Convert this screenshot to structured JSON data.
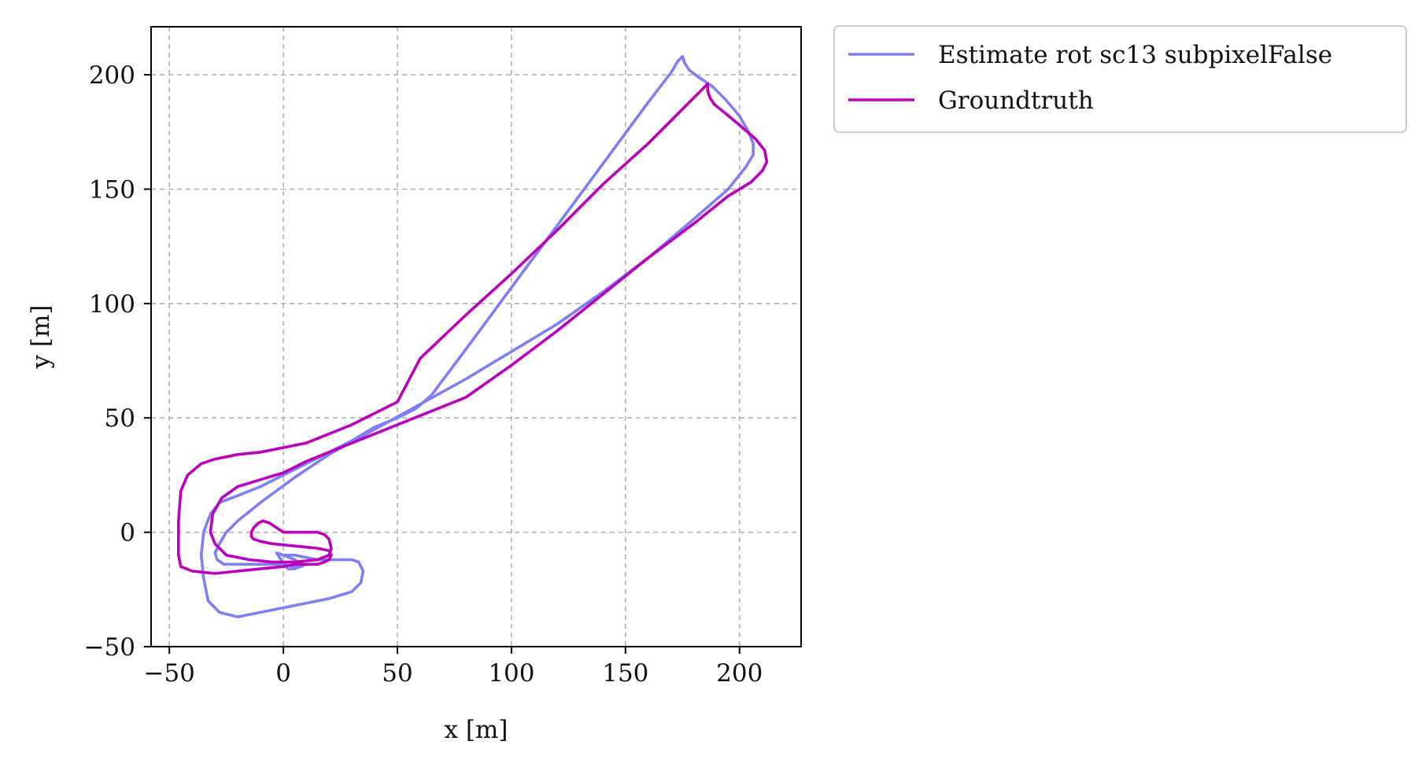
{
  "chart_data": {
    "type": "line",
    "title": "",
    "xlabel": "x [m]",
    "ylabel": "y [m]",
    "xlim": [
      -58,
      227
    ],
    "ylim": [
      -50,
      221
    ],
    "xticks": [
      -50,
      0,
      50,
      100,
      150,
      200
    ],
    "yticks": [
      -50,
      0,
      50,
      100,
      150,
      200
    ],
    "xtick_labels": [
      "−50",
      "0",
      "50",
      "100",
      "150",
      "200"
    ],
    "ytick_labels": [
      "−50",
      "0",
      "50",
      "100",
      "150",
      "200"
    ],
    "grid": true,
    "legend_position": "outside-top-right",
    "series": [
      {
        "name": "Estimate rot sc13 subpixelFalse",
        "color": "#7f7ff5",
        "x": [
          0,
          5,
          10,
          15,
          20,
          25,
          30,
          33,
          35,
          34,
          30,
          20,
          5,
          -10,
          -20,
          -28,
          -33,
          -35,
          -36,
          -35,
          -32,
          -28,
          -20,
          -10,
          0,
          10,
          20,
          30,
          40,
          50,
          58,
          65,
          80,
          100,
          120,
          140,
          160,
          170,
          173,
          175,
          176,
          178,
          182,
          188,
          194,
          200,
          204,
          206,
          206,
          203,
          195,
          180,
          160,
          140,
          120,
          100,
          80,
          60,
          40,
          20,
          5,
          -10,
          -20,
          -25,
          -28,
          -30,
          -29,
          -26,
          -20,
          -10,
          0,
          5,
          8,
          8,
          5,
          0,
          -3,
          -1,
          2,
          5,
          10
        ],
        "y": [
          -10,
          -10,
          -11,
          -12,
          -12,
          -12,
          -12,
          -13,
          -17,
          -22,
          -26,
          -29,
          -32,
          -35,
          -37,
          -35,
          -30,
          -20,
          -10,
          0,
          8,
          13,
          16,
          20,
          25,
          30,
          35,
          40,
          46,
          50,
          54,
          60,
          80,
          107,
          134,
          161,
          188,
          201,
          206,
          208,
          205,
          202,
          199,
          195,
          189,
          182,
          175,
          170,
          165,
          160,
          150,
          137,
          120,
          105,
          91,
          79,
          67,
          56,
          45,
          34,
          24,
          13,
          5,
          0,
          -5,
          -9,
          -12,
          -14,
          -14,
          -14,
          -14,
          -15,
          -15,
          -14,
          -12,
          -10,
          -9,
          -12,
          -16,
          -16,
          -14
        ]
      },
      {
        "name": "Groundtruth",
        "color": "#bb00bb",
        "x": [
          0,
          5,
          10,
          15,
          18,
          20,
          21,
          20,
          15,
          5,
          -5,
          -15,
          -25,
          -30,
          -32,
          -31,
          -27,
          -20,
          -10,
          0,
          10,
          20,
          30,
          40,
          50,
          60,
          80,
          100,
          120,
          140,
          160,
          180,
          195,
          205,
          210,
          212,
          211,
          207,
          200,
          194,
          189,
          187,
          186,
          186,
          184,
          175,
          160,
          140,
          120,
          100,
          80,
          60,
          50,
          40,
          30,
          20,
          10,
          0,
          -10,
          -20,
          -25,
          -30,
          -36,
          -42,
          -45,
          -46,
          -46,
          -45,
          -40,
          -30,
          -20,
          -10,
          0,
          5,
          10,
          15,
          18,
          20,
          21,
          20,
          15,
          5,
          -5,
          -10,
          -13,
          -14,
          -14,
          -13,
          -11,
          -9,
          -6,
          -3,
          0
        ],
        "y": [
          0,
          0,
          0,
          0,
          -1,
          -3,
          -7,
          -10,
          -12,
          -13,
          -13,
          -12,
          -10,
          -5,
          0,
          8,
          15,
          20,
          23,
          26,
          31,
          35,
          39,
          43,
          47,
          51,
          59,
          73,
          88,
          104,
          120,
          135,
          147,
          153,
          158,
          162,
          167,
          172,
          178,
          183,
          187,
          190,
          193,
          196,
          194,
          185,
          170,
          152,
          132,
          113,
          95,
          76,
          57,
          52,
          47,
          43,
          39,
          37,
          35,
          34,
          33,
          32,
          30,
          25,
          18,
          5,
          -10,
          -15,
          -17,
          -18,
          -17,
          -16,
          -15,
          -14,
          -14,
          -14,
          -13,
          -12,
          -10,
          -8,
          -7,
          -6,
          -5,
          -4,
          -3,
          -2,
          0,
          2,
          4,
          5,
          4,
          2,
          0
        ]
      }
    ]
  }
}
